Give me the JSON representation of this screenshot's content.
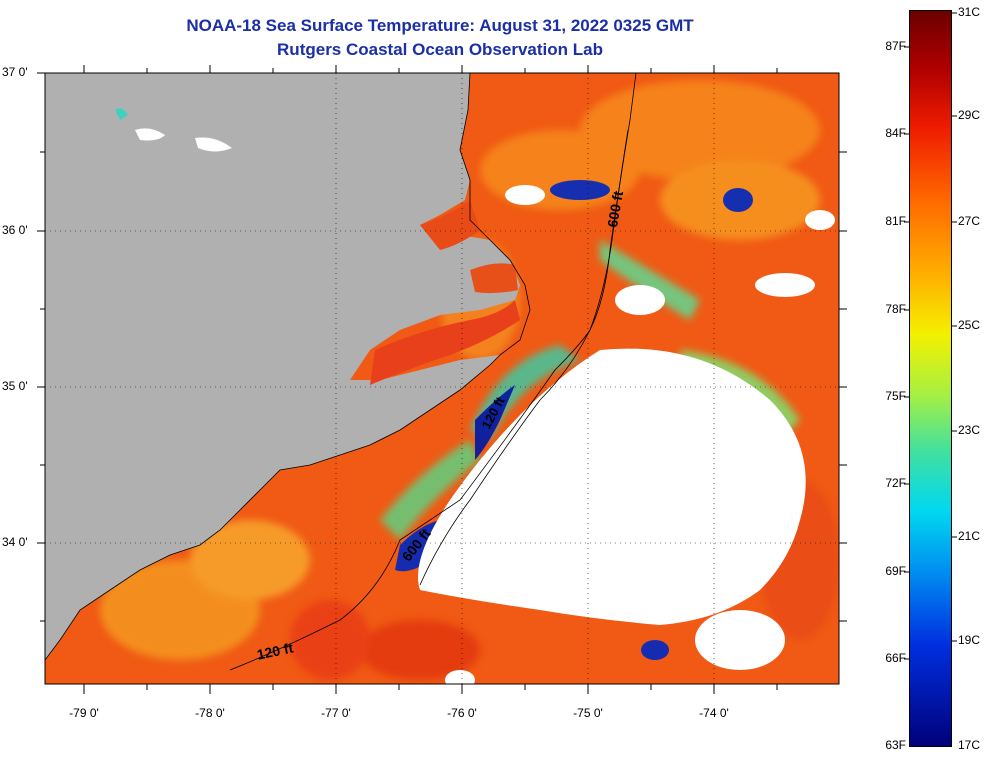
{
  "title_line1": "NOAA-18 Sea Surface Temperature:  August 31, 2022 0325 GMT",
  "title_line2": "Rutgers Coastal Ocean Observation Lab",
  "lat_labels": [
    "37 0'",
    "36 0'",
    "35 0'",
    "34 0'"
  ],
  "lon_labels": [
    "-79 0'",
    "-78 0'",
    "-77 0'",
    "-76 0'",
    "-75 0'",
    "-74 0'"
  ],
  "contour_labels": [
    "600 ft",
    "120 ft",
    "600 ft",
    "120 ft"
  ],
  "colorbar": {
    "fahrenheit": [
      "87F",
      "84F",
      "81F",
      "78F",
      "75F",
      "72F",
      "69F",
      "66F",
      "63F"
    ],
    "celsius": [
      "31C",
      "29C",
      "27C",
      "25C",
      "23C",
      "21C",
      "19C",
      "17C"
    ]
  },
  "colors": {
    "land": "#b0b0b0",
    "cloud": "#ffffff",
    "warm_water": "#f05a14",
    "title": "#1b2fa6"
  }
}
